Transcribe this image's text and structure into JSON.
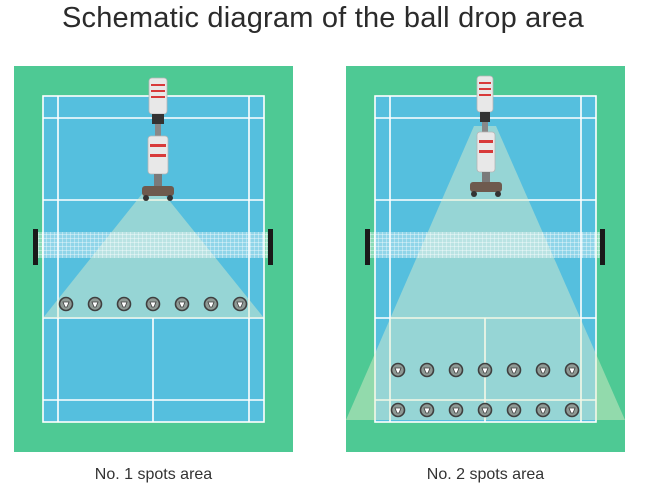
{
  "title": "Schematic diagram of the ball drop area",
  "colors": {
    "field": "#4ec994",
    "court": "#55bfde",
    "line": "#ffffff",
    "cone": "#e6efc9",
    "net_post": "#1a1a1a",
    "machine_body": "#e8e8e8",
    "machine_red": "#d83a3a",
    "machine_base": "#6e5a4e",
    "spot": "#3f3f3f"
  },
  "icons": {
    "machine": "shuttlecock-launcher-machine-icon",
    "spot": "shuttlecock-spot-icon",
    "net": "badminton-net-icon"
  },
  "panels": [
    {
      "caption": "No. 1 spots area",
      "spot_rows": 1,
      "spots_per_row": 7
    },
    {
      "caption": "No. 2 spots area",
      "spot_rows": 2,
      "spots_per_row": 7
    }
  ]
}
